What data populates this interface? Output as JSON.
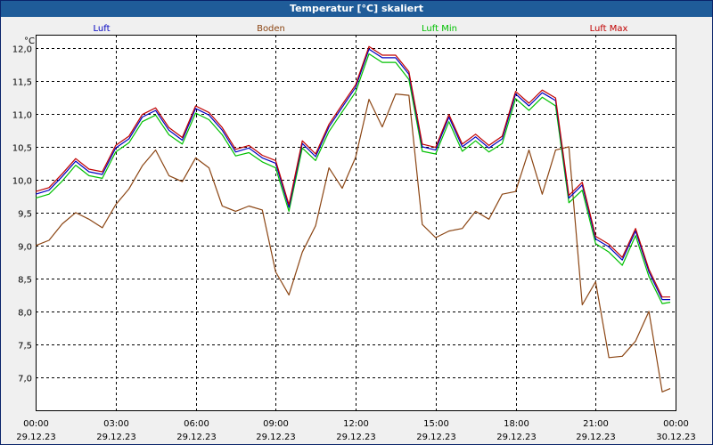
{
  "window": {
    "title": "Temperatur [°C] skaliert"
  },
  "chart_data": {
    "type": "line",
    "title": "Temperatur [°C] skaliert",
    "ylabel": "°C",
    "ylim": [
      6.5,
      12.2
    ],
    "xlim_hours": [
      0,
      24
    ],
    "grid": true,
    "yticks": [
      7.0,
      7.5,
      8.0,
      8.5,
      9.0,
      9.5,
      10.0,
      10.5,
      11.0,
      11.5,
      12.0
    ],
    "ytick_labels": [
      "7,0",
      "7,5",
      "8,0",
      "8,5",
      "9,0",
      "9,5",
      "10,0",
      "10,5",
      "11,0",
      "11,5",
      "12,0"
    ],
    "xticks": [
      {
        "hour": 0,
        "time": "00:00",
        "date": "29.12.23"
      },
      {
        "hour": 3,
        "time": "03:00",
        "date": "29.12.23"
      },
      {
        "hour": 6,
        "time": "06:00",
        "date": "29.12.23"
      },
      {
        "hour": 9,
        "time": "09:00",
        "date": "29.12.23"
      },
      {
        "hour": 12,
        "time": "12:00",
        "date": "29.12.23"
      },
      {
        "hour": 15,
        "time": "15:00",
        "date": "29.12.23"
      },
      {
        "hour": 18,
        "time": "18:00",
        "date": "29.12.23"
      },
      {
        "hour": 21,
        "time": "21:00",
        "date": "29.12.23"
      },
      {
        "hour": 24,
        "time": "00:00",
        "date": "30.12.23"
      }
    ],
    "x_hours": [
      0,
      0.5,
      1,
      1.5,
      2,
      2.5,
      3,
      3.5,
      4,
      4.5,
      5,
      5.5,
      6,
      6.5,
      7,
      7.5,
      8,
      8.5,
      9,
      9.5,
      10,
      10.5,
      11,
      11.5,
      12,
      12.5,
      13,
      13.5,
      14,
      14.5,
      15,
      15.5,
      16,
      16.5,
      17,
      17.5,
      18,
      18.5,
      19,
      19.5,
      20,
      20.5,
      21,
      21.5,
      22,
      22.5,
      23,
      23.5,
      23.8
    ],
    "series": [
      {
        "name": "Luft",
        "color": "#0000c0",
        "values": [
          9.78,
          9.84,
          10.05,
          10.28,
          10.12,
          10.08,
          10.48,
          10.62,
          10.95,
          11.05,
          10.75,
          10.6,
          11.08,
          10.98,
          10.75,
          10.42,
          10.48,
          10.33,
          10.25,
          9.58,
          10.55,
          10.35,
          10.8,
          11.1,
          11.4,
          11.98,
          11.85,
          11.85,
          11.6,
          10.5,
          10.45,
          10.95,
          10.5,
          10.65,
          10.48,
          10.62,
          11.3,
          11.12,
          11.32,
          11.2,
          9.72,
          9.92,
          9.1,
          8.98,
          8.78,
          9.22,
          8.6,
          8.18,
          8.18
        ]
      },
      {
        "name": "Boden",
        "color": "#8b4513",
        "values": [
          9.0,
          9.08,
          9.33,
          9.5,
          9.4,
          9.27,
          9.62,
          9.86,
          10.21,
          10.45,
          10.06,
          9.97,
          10.33,
          10.18,
          9.6,
          9.52,
          9.6,
          9.54,
          8.6,
          8.25,
          8.9,
          9.3,
          10.18,
          9.87,
          10.34,
          11.22,
          10.8,
          11.3,
          11.28,
          9.32,
          9.12,
          9.22,
          9.26,
          9.52,
          9.4,
          9.78,
          9.82,
          10.45,
          9.78,
          10.45,
          10.5,
          8.1,
          8.45,
          7.3,
          7.32,
          7.55,
          8.0,
          6.78,
          6.83
        ]
      },
      {
        "name": "Luft Min",
        "color": "#00c000",
        "values": [
          9.72,
          9.78,
          9.98,
          10.22,
          10.06,
          10.02,
          10.42,
          10.56,
          10.88,
          10.98,
          10.68,
          10.54,
          11.01,
          10.91,
          10.68,
          10.36,
          10.41,
          10.27,
          10.18,
          9.52,
          10.48,
          10.29,
          10.73,
          11.03,
          11.33,
          11.91,
          11.78,
          11.78,
          11.52,
          10.43,
          10.39,
          10.88,
          10.43,
          10.59,
          10.42,
          10.55,
          11.23,
          11.05,
          11.25,
          11.12,
          9.65,
          9.84,
          9.03,
          8.9,
          8.7,
          9.15,
          8.53,
          8.12,
          8.14
        ]
      },
      {
        "name": "Luft Max",
        "color": "#c00000",
        "values": [
          9.82,
          9.88,
          10.09,
          10.32,
          10.16,
          10.12,
          10.52,
          10.66,
          10.99,
          11.09,
          10.79,
          10.64,
          11.12,
          11.02,
          10.79,
          10.46,
          10.52,
          10.37,
          10.29,
          9.62,
          10.59,
          10.39,
          10.84,
          11.14,
          11.44,
          12.02,
          11.89,
          11.89,
          11.64,
          10.54,
          10.49,
          10.99,
          10.54,
          10.69,
          10.52,
          10.66,
          11.34,
          11.16,
          11.36,
          11.24,
          9.76,
          9.96,
          9.14,
          9.02,
          8.82,
          9.26,
          8.64,
          8.22,
          8.22
        ]
      }
    ]
  }
}
